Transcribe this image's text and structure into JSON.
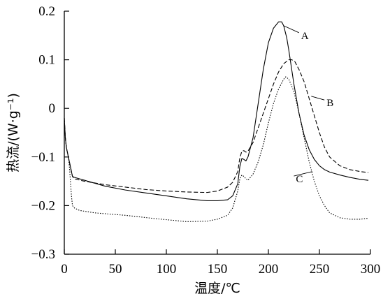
{
  "chart_data": {
    "type": "line",
    "xlabel": "温度/℃",
    "ylabel": "热流/(W·g⁻¹)",
    "xlim": [
      0,
      300
    ],
    "ylim": [
      -0.3,
      0.2
    ],
    "grid": false,
    "x_ticks": [
      "0",
      "50",
      "100",
      "150",
      "200",
      "250",
      "300"
    ],
    "y_ticks": [
      "−0.3",
      "−0.2",
      "−0.1",
      "0",
      "0.1",
      "0.2"
    ],
    "series": [
      {
        "name": "A",
        "line_style": "solid",
        "x": [
          0,
          1,
          2,
          3,
          4,
          6,
          8,
          10,
          20,
          40,
          60,
          80,
          100,
          120,
          140,
          150,
          160,
          165,
          170,
          172,
          174,
          176,
          178,
          180,
          185,
          190,
          195,
          200,
          205,
          210,
          213,
          215,
          218,
          220,
          225,
          230,
          235,
          240,
          245,
          250,
          255,
          260,
          270,
          280,
          290,
          298
        ],
        "y": [
          -0.02,
          -0.06,
          -0.08,
          -0.09,
          -0.1,
          -0.12,
          -0.14,
          -0.142,
          -0.148,
          -0.16,
          -0.168,
          -0.174,
          -0.18,
          -0.186,
          -0.19,
          -0.19,
          -0.188,
          -0.18,
          -0.155,
          -0.12,
          -0.103,
          -0.105,
          -0.108,
          -0.1,
          -0.06,
          0.01,
          0.08,
          0.135,
          0.165,
          0.178,
          0.178,
          0.17,
          0.145,
          0.12,
          0.05,
          -0.01,
          -0.055,
          -0.085,
          -0.105,
          -0.118,
          -0.126,
          -0.131,
          -0.137,
          -0.142,
          -0.146,
          -0.148
        ]
      },
      {
        "name": "B",
        "line_style": "dashed",
        "x": [
          0,
          1,
          2,
          3,
          4,
          6,
          8,
          10,
          20,
          40,
          60,
          80,
          100,
          120,
          140,
          150,
          160,
          165,
          170,
          172,
          174,
          176,
          178,
          180,
          185,
          190,
          195,
          200,
          205,
          210,
          215,
          220,
          223,
          226,
          230,
          235,
          240,
          245,
          250,
          255,
          260,
          270,
          280,
          290,
          298
        ],
        "y": [
          -0.02,
          -0.06,
          -0.08,
          -0.09,
          -0.1,
          -0.12,
          -0.14,
          -0.145,
          -0.15,
          -0.157,
          -0.162,
          -0.167,
          -0.17,
          -0.172,
          -0.173,
          -0.17,
          -0.162,
          -0.152,
          -0.13,
          -0.102,
          -0.088,
          -0.087,
          -0.09,
          -0.088,
          -0.07,
          -0.04,
          -0.01,
          0.02,
          0.05,
          0.075,
          0.092,
          0.1,
          0.1,
          0.096,
          0.08,
          0.055,
          0.02,
          -0.015,
          -0.05,
          -0.08,
          -0.1,
          -0.118,
          -0.126,
          -0.13,
          -0.132
        ]
      },
      {
        "name": "C",
        "line_style": "dotted",
        "x": [
          0,
          1,
          2,
          3,
          4,
          5,
          6,
          7,
          8,
          10,
          15,
          30,
          60,
          90,
          120,
          140,
          150,
          160,
          165,
          170,
          172,
          174,
          176,
          178,
          180,
          185,
          190,
          195,
          200,
          205,
          210,
          215,
          217,
          220,
          225,
          230,
          235,
          240,
          245,
          250,
          255,
          260,
          270,
          280,
          290,
          298
        ],
        "y": [
          -0.02,
          -0.06,
          -0.08,
          -0.09,
          -0.1,
          -0.12,
          -0.15,
          -0.18,
          -0.2,
          -0.205,
          -0.21,
          -0.215,
          -0.22,
          -0.227,
          -0.233,
          -0.232,
          -0.228,
          -0.22,
          -0.205,
          -0.17,
          -0.145,
          -0.137,
          -0.14,
          -0.145,
          -0.148,
          -0.135,
          -0.11,
          -0.075,
          -0.03,
          0.01,
          0.04,
          0.06,
          0.065,
          0.06,
          0.035,
          -0.01,
          -0.06,
          -0.11,
          -0.15,
          -0.18,
          -0.2,
          -0.215,
          -0.225,
          -0.228,
          -0.228,
          -0.226
        ]
      }
    ],
    "annotations": [
      {
        "text": "A",
        "x": 232,
        "y": 0.15,
        "points_to": {
          "x": 215,
          "y": 0.17
        }
      },
      {
        "text": "B",
        "x": 257,
        "y": 0.0115,
        "points_to": {
          "x": 242,
          "y": 0.025
        }
      },
      {
        "text": "C",
        "x": 227,
        "y": -0.145,
        "points_to": {
          "x": 243,
          "y": -0.13
        }
      }
    ]
  }
}
